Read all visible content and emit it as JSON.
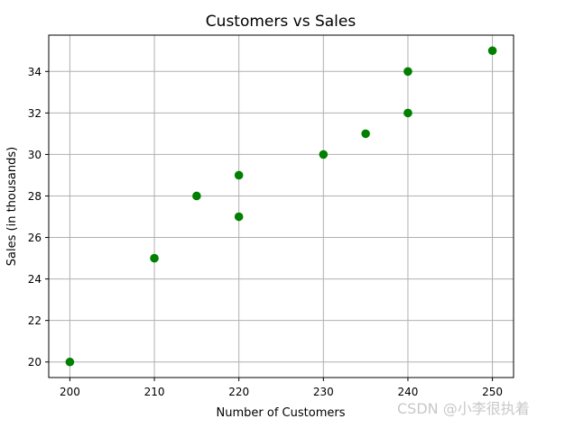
{
  "chart_data": {
    "type": "scatter",
    "title": "Customers vs Sales",
    "xlabel": "Number of Customers",
    "ylabel": "Sales (in thousands)",
    "xlim": [
      197.5,
      252.5
    ],
    "ylim": [
      19.25,
      35.75
    ],
    "xticks": [
      200,
      210,
      220,
      230,
      240,
      250
    ],
    "yticks": [
      20,
      22,
      24,
      26,
      28,
      30,
      32,
      34
    ],
    "grid": true,
    "marker_color": "#008000",
    "points": [
      {
        "x": 200,
        "y": 20
      },
      {
        "x": 210,
        "y": 25
      },
      {
        "x": 215,
        "y": 28
      },
      {
        "x": 220,
        "y": 27
      },
      {
        "x": 220,
        "y": 29
      },
      {
        "x": 230,
        "y": 30
      },
      {
        "x": 235,
        "y": 31
      },
      {
        "x": 240,
        "y": 32
      },
      {
        "x": 240,
        "y": 34
      },
      {
        "x": 250,
        "y": 35
      }
    ]
  },
  "watermark": "CSDN @小李很执着"
}
